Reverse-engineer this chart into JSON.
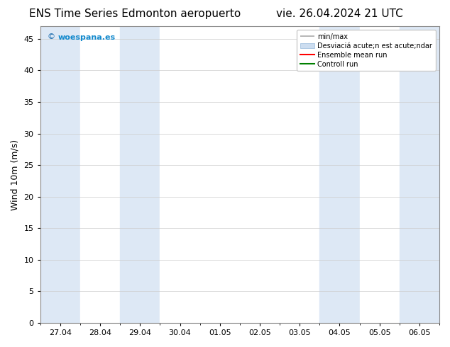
{
  "title_left": "ENS Time Series Edmonton aeropuerto",
  "title_right": "vie. 26.04.2024 21 UTC",
  "ylabel": "Wind 10m (m/s)",
  "ylim": [
    0,
    47
  ],
  "yticks": [
    0,
    5,
    10,
    15,
    20,
    25,
    30,
    35,
    40,
    45
  ],
  "xtick_labels": [
    "27.04",
    "28.04",
    "29.04",
    "30.04",
    "01.05",
    "02.05",
    "03.05",
    "04.05",
    "05.05",
    "06.05"
  ],
  "xlim": [
    0,
    10
  ],
  "background_color": "#ffffff",
  "plot_bg_color": "#ffffff",
  "shaded_bands": [
    {
      "x_start": 0,
      "x_end": 1,
      "color": "#dde8f5"
    },
    {
      "x_start": 1,
      "x_end": 2,
      "color": "#ffffff"
    },
    {
      "x_start": 2,
      "x_end": 3,
      "color": "#dde8f5"
    },
    {
      "x_start": 3,
      "x_end": 4,
      "color": "#ffffff"
    },
    {
      "x_start": 4,
      "x_end": 5,
      "color": "#ffffff"
    },
    {
      "x_start": 5,
      "x_end": 6,
      "color": "#ffffff"
    },
    {
      "x_start": 6,
      "x_end": 7,
      "color": "#ffffff"
    },
    {
      "x_start": 7,
      "x_end": 8,
      "color": "#dde8f5"
    },
    {
      "x_start": 8,
      "x_end": 9,
      "color": "#ffffff"
    },
    {
      "x_start": 9,
      "x_end": 10,
      "color": "#dde8f5"
    }
  ],
  "legend_minmax_color": "#aaaaaa",
  "legend_std_color": "#ccddf0",
  "legend_ens_color": "#ff0000",
  "legend_ctrl_color": "#008000",
  "watermark_text": "woespana.es",
  "watermark_color": "#1188cc",
  "title_fontsize": 11,
  "tick_fontsize": 8,
  "ylabel_fontsize": 9
}
